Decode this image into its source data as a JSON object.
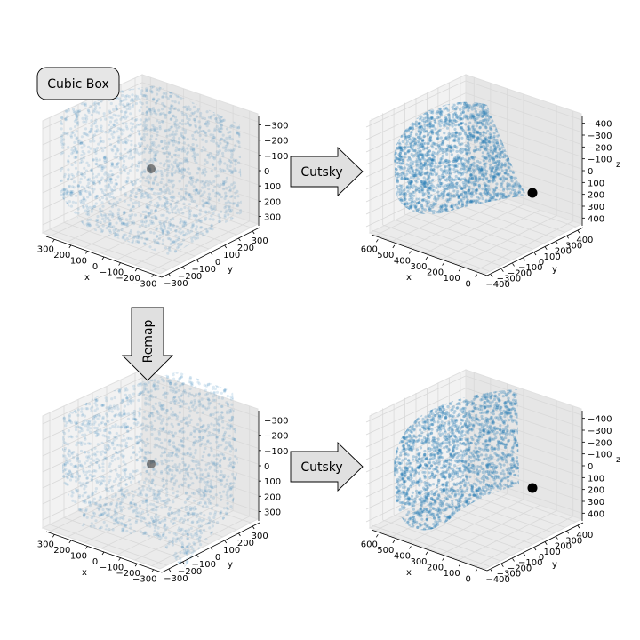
{
  "annotations": {
    "cubic_box": "Cubic Box",
    "cutsky_top": "Cutsky",
    "remap": "Remap",
    "cutsky_bottom": "Cutsky"
  },
  "colors": {
    "points": "#1f77b4",
    "observer": "#000000",
    "pane_left": "#f2f2f2",
    "pane_right": "#e6e6e6",
    "pane_floor": "#ebebeb",
    "grid": "#d9d9d9",
    "arrow_fill": "#e0e0e0"
  },
  "chart_data": [
    {
      "type": "scatter",
      "panel": "top-left",
      "xlabel": "x",
      "ylabel": "y",
      "zlabel": "",
      "xlim": [
        -350,
        350
      ],
      "ylim": [
        -350,
        350
      ],
      "zlim": [
        -350,
        350
      ],
      "zaxis_inverted": true,
      "xticks": [
        "300",
        "200",
        "100",
        "0",
        "−100",
        "−200",
        "−300"
      ],
      "yticks": [
        "−300",
        "−200",
        "−100",
        "0",
        "100",
        "200",
        "300"
      ],
      "zticks": [
        "−300",
        "−200",
        "−100",
        "0",
        "100",
        "200",
        "300"
      ],
      "series": [
        {
          "shape": "cube",
          "x_range": [
            -350,
            350
          ],
          "y_range": [
            -350,
            350
          ],
          "z_range": [
            -350,
            350
          ],
          "alpha": 0.15
        }
      ],
      "observer": [
        0,
        0,
        0
      ]
    },
    {
      "type": "scatter",
      "panel": "top-right",
      "xlabel": "x",
      "ylabel": "y",
      "zlabel": "z",
      "xlim": [
        0,
        650
      ],
      "ylim": [
        -400,
        400
      ],
      "zlim": [
        -400,
        400
      ],
      "zaxis_inverted": true,
      "xticks": [
        "600",
        "500",
        "400",
        "300",
        "200",
        "100",
        "0"
      ],
      "yticks": [
        "−400",
        "−300",
        "−200",
        "−100",
        "0",
        "100",
        "200",
        "300",
        "400"
      ],
      "zticks": [
        "−400",
        "−300",
        "−200",
        "−100",
        "0",
        "100",
        "200",
        "300",
        "400"
      ],
      "series": [
        {
          "shape": "spherical-shell-cutout",
          "r_range": [
            250,
            600
          ],
          "alpha": 0.3
        }
      ],
      "observer": [
        0,
        0,
        0
      ]
    },
    {
      "type": "scatter",
      "panel": "bottom-left",
      "xlabel": "x",
      "ylabel": "y",
      "zlabel": "",
      "xlim": [
        -350,
        350
      ],
      "ylim": [
        -350,
        350
      ],
      "zlim": [
        -350,
        350
      ],
      "zaxis_inverted": true,
      "xticks": [
        "300",
        "200",
        "100",
        "0",
        "−100",
        "−200",
        "−300"
      ],
      "yticks": [
        "−300",
        "−200",
        "−100",
        "0",
        "100",
        "200",
        "300"
      ],
      "zticks": [
        "−300",
        "−200",
        "−100",
        "0",
        "100",
        "200",
        "300"
      ],
      "series": [
        {
          "shape": "remapped-cuboid",
          "alpha": 0.15
        }
      ],
      "observer": [
        0,
        0,
        0
      ]
    },
    {
      "type": "scatter",
      "panel": "bottom-right",
      "xlabel": "x",
      "ylabel": "y",
      "zlabel": "z",
      "xlim": [
        0,
        650
      ],
      "ylim": [
        -400,
        400
      ],
      "zlim": [
        -400,
        400
      ],
      "zaxis_inverted": true,
      "xticks": [
        "600",
        "500",
        "400",
        "300",
        "200",
        "100",
        "0"
      ],
      "yticks": [
        "−400",
        "−300",
        "−200",
        "−100",
        "0",
        "100",
        "200",
        "300",
        "400"
      ],
      "zticks": [
        "−400",
        "−300",
        "−200",
        "−100",
        "0",
        "100",
        "200",
        "300",
        "400"
      ],
      "series": [
        {
          "shape": "spherical-shell-cutout",
          "r_range": [
            200,
            650
          ],
          "alpha": 0.3
        }
      ],
      "observer": [
        0,
        0,
        0
      ]
    }
  ]
}
